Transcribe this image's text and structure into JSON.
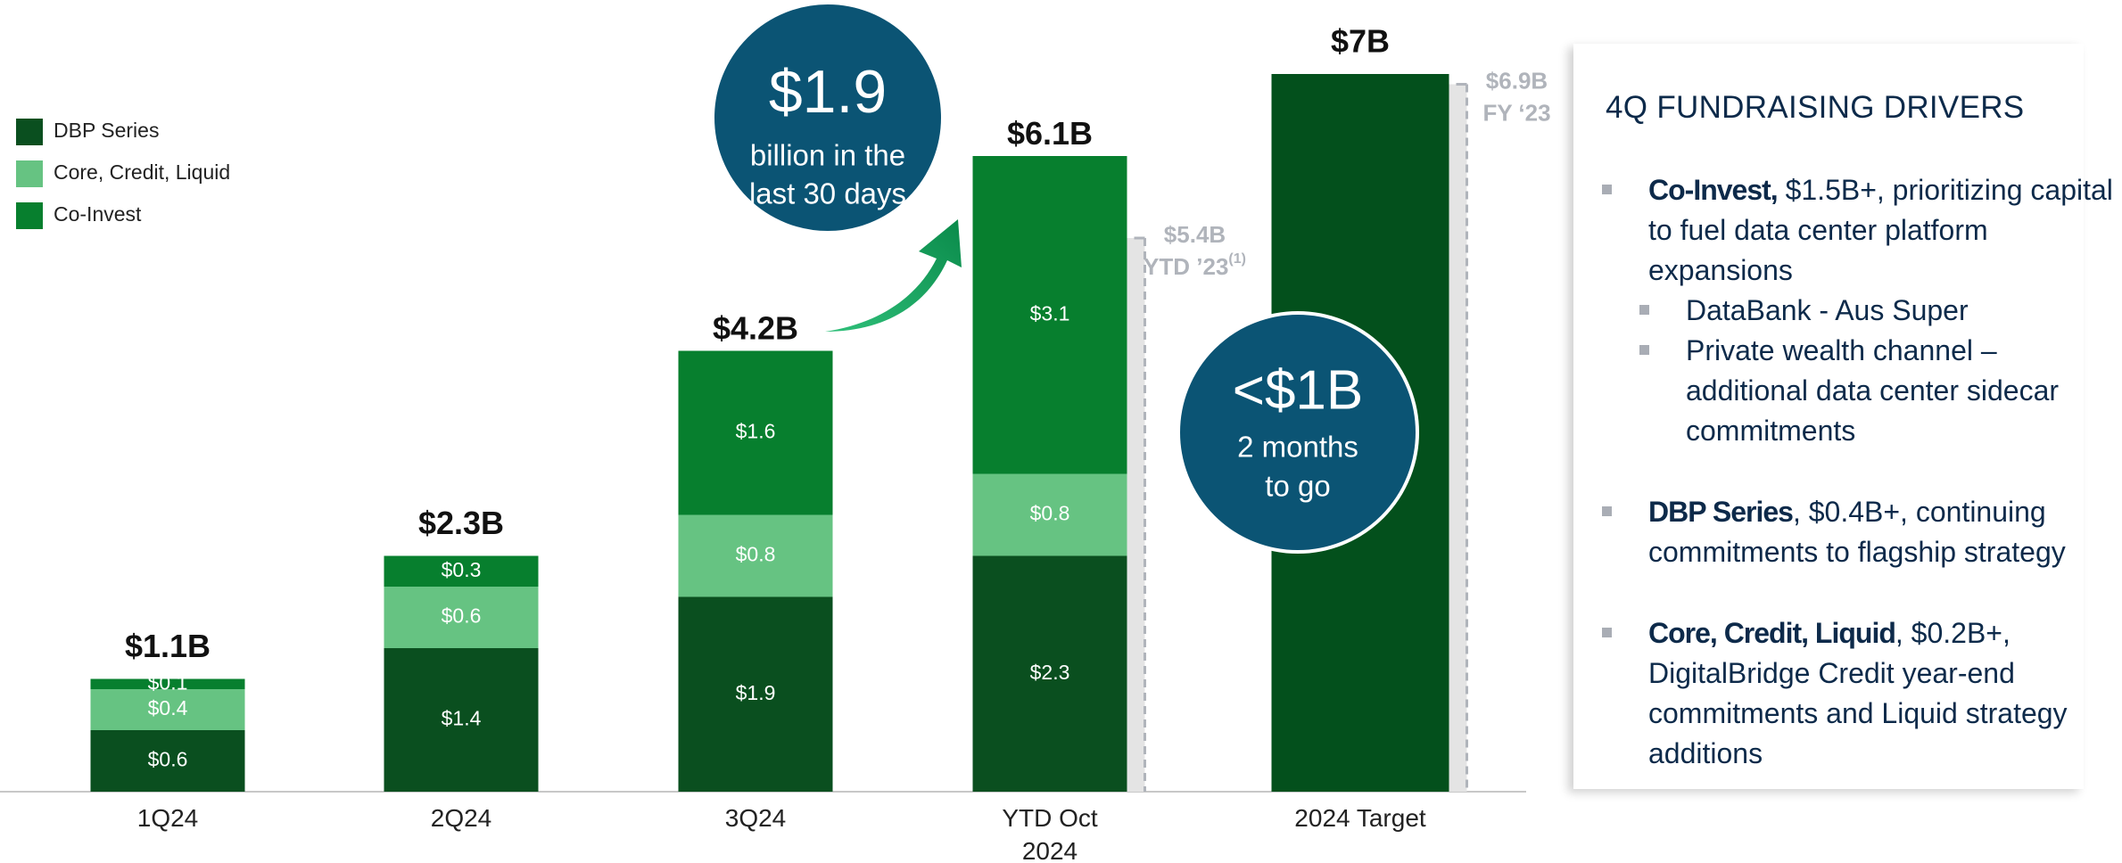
{
  "chart_data": {
    "type": "bar",
    "categories": [
      "1Q24",
      "2Q24",
      "3Q24",
      "YTD Oct\n2024",
      "2024 Target"
    ],
    "series": [
      {
        "name": "DBP Series",
        "color": "#0a4f1f",
        "values": [
          0.6,
          1.4,
          1.9,
          2.3,
          null
        ],
        "value_labels": [
          "$0.6",
          "$1.4",
          "$1.9",
          "$2.3",
          null
        ]
      },
      {
        "name": "Core, Credit, Liquid",
        "color": "#66c382",
        "values": [
          0.4,
          0.6,
          0.8,
          0.8,
          null
        ],
        "value_labels": [
          "$0.4",
          "$0.6",
          "$0.8",
          "$0.8",
          null
        ]
      },
      {
        "name": "Co-Invest",
        "color": "#077f2e",
        "values": [
          0.1,
          0.3,
          1.6,
          3.1,
          null
        ],
        "value_labels": [
          "$0.1",
          "$0.3",
          "$1.6",
          "$3.1",
          null
        ]
      }
    ],
    "totals": [
      1.1,
      2.3,
      4.2,
      6.1,
      7
    ],
    "total_labels": [
      "$1.1B",
      "$2.3B",
      "$4.2B",
      "$6.1B",
      "$7B"
    ],
    "target_color": "#03501c",
    "references": [
      {
        "category": 3,
        "value": 5.4,
        "label": "$5.4B",
        "period": "YTD ’23",
        "footnote": "(1)"
      },
      {
        "category": 4,
        "value": 6.9,
        "label": "$6.9B",
        "period": "FY ‘23"
      }
    ],
    "callouts": [
      {
        "headline": "$1.9",
        "lines": [
          "billion in the",
          "last 30 days"
        ]
      },
      {
        "headline": "<$1B",
        "lines": [
          "2 months",
          "to go"
        ]
      }
    ]
  },
  "panel": {
    "title": "4Q FUNDRAISING DRIVERS",
    "items": [
      {
        "lead": "Co-Invest,",
        "text": " $1.5B+, prioritizing capital to fuel data center platform expansions",
        "subitems": [
          "DataBank - Aus Super",
          "Private wealth channel – additional data center sidecar commitments"
        ]
      },
      {
        "lead": "DBP Series",
        "text": ", $0.4B+, continuing commitments to flagship strategy",
        "subitems": []
      },
      {
        "lead": "Core, Credit, Liquid",
        "text": ", $0.2B+, DigitalBridge Credit year-end commitments and Liquid strategy additions",
        "subitems": []
      }
    ]
  }
}
